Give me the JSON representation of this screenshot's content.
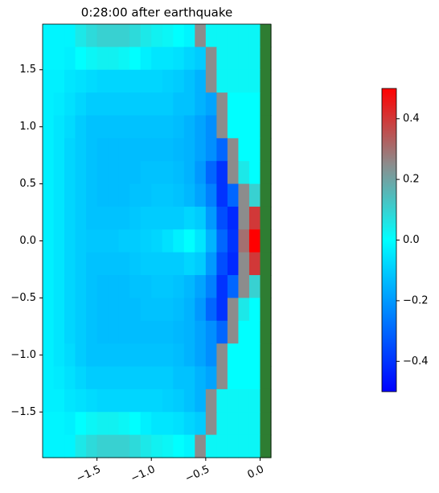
{
  "chart_data": {
    "type": "heatmap",
    "title": "0:28:00 after earthquake",
    "x": [
      -1.95,
      -1.85,
      -1.75,
      -1.65,
      -1.55,
      -1.45,
      -1.35,
      -1.25,
      -1.15,
      -1.05,
      -0.95,
      -0.85,
      -0.75,
      -0.65,
      -0.55,
      -0.45,
      -0.35,
      -0.25,
      -0.15,
      -0.05,
      0.05
    ],
    "y": [
      1.8,
      1.6,
      1.4,
      1.2,
      1.0,
      0.8,
      0.6,
      0.4,
      0.2,
      0.0,
      -0.2,
      -0.4,
      -0.6,
      -0.8,
      -1.0,
      -1.2,
      -1.4,
      -1.6,
      -1.8
    ],
    "z": [
      [
        -0.02,
        -0.02,
        -0.02,
        0.05,
        0.08,
        0.1,
        0.1,
        0.1,
        0.08,
        0.05,
        0.03,
        0.02,
        0.0,
        -0.02,
        0.25,
        0.02,
        0.02,
        0.02,
        0.02,
        0.02,
        null
      ],
      [
        -0.02,
        -0.02,
        -0.03,
        0.0,
        0.02,
        0.03,
        0.03,
        0.02,
        0.0,
        -0.03,
        -0.05,
        -0.05,
        -0.06,
        -0.08,
        -0.1,
        0.25,
        0.02,
        0.02,
        0.02,
        0.02,
        null
      ],
      [
        -0.03,
        -0.03,
        -0.05,
        -0.06,
        -0.07,
        -0.08,
        -0.08,
        -0.08,
        -0.08,
        -0.08,
        -0.08,
        -0.09,
        -0.1,
        -0.12,
        -0.15,
        0.25,
        0.02,
        0.02,
        0.02,
        0.02,
        null
      ],
      [
        -0.03,
        -0.04,
        -0.06,
        -0.08,
        -0.1,
        -0.1,
        -0.1,
        -0.1,
        -0.1,
        -0.1,
        -0.1,
        -0.1,
        -0.12,
        -0.12,
        -0.15,
        -0.18,
        0.25,
        0.0,
        0.0,
        0.0,
        null
      ],
      [
        -0.03,
        -0.05,
        -0.07,
        -0.1,
        -0.12,
        -0.12,
        -0.12,
        -0.12,
        -0.12,
        -0.12,
        -0.12,
        -0.12,
        -0.13,
        -0.15,
        -0.18,
        -0.22,
        0.25,
        0.0,
        0.0,
        0.0,
        null
      ],
      [
        -0.03,
        -0.05,
        -0.08,
        -0.1,
        -0.12,
        -0.13,
        -0.13,
        -0.13,
        -0.13,
        -0.13,
        -0.13,
        -0.13,
        -0.14,
        -0.15,
        -0.18,
        -0.22,
        -0.3,
        0.25,
        0.0,
        0.0,
        null
      ],
      [
        -0.03,
        -0.05,
        -0.08,
        -0.1,
        -0.12,
        -0.13,
        -0.13,
        -0.13,
        -0.13,
        -0.12,
        -0.12,
        -0.12,
        -0.13,
        -0.15,
        -0.2,
        -0.3,
        -0.4,
        0.25,
        0.05,
        0.0,
        null
      ],
      [
        -0.03,
        -0.05,
        -0.08,
        -0.1,
        -0.12,
        -0.13,
        -0.13,
        -0.13,
        -0.12,
        -0.12,
        -0.11,
        -0.11,
        -0.12,
        -0.14,
        -0.18,
        -0.25,
        -0.4,
        -0.3,
        0.25,
        0.1,
        null
      ],
      [
        -0.03,
        -0.05,
        -0.08,
        -0.1,
        -0.12,
        -0.12,
        -0.12,
        -0.12,
        -0.11,
        -0.1,
        -0.1,
        -0.1,
        -0.1,
        -0.08,
        -0.1,
        -0.2,
        -0.35,
        -0.42,
        0.25,
        0.4,
        null
      ],
      [
        -0.03,
        -0.05,
        -0.08,
        -0.1,
        -0.11,
        -0.11,
        -0.11,
        -0.1,
        -0.1,
        -0.09,
        -0.08,
        -0.06,
        -0.03,
        0.0,
        -0.05,
        -0.15,
        -0.3,
        -0.4,
        0.3,
        0.5,
        null
      ],
      [
        -0.03,
        -0.05,
        -0.08,
        -0.1,
        -0.12,
        -0.12,
        -0.12,
        -0.12,
        -0.11,
        -0.1,
        -0.1,
        -0.1,
        -0.1,
        -0.08,
        -0.1,
        -0.2,
        -0.35,
        -0.42,
        0.25,
        0.4,
        null
      ],
      [
        -0.03,
        -0.05,
        -0.08,
        -0.1,
        -0.12,
        -0.13,
        -0.13,
        -0.13,
        -0.12,
        -0.12,
        -0.11,
        -0.11,
        -0.12,
        -0.14,
        -0.18,
        -0.25,
        -0.4,
        -0.3,
        0.25,
        0.1,
        null
      ],
      [
        -0.03,
        -0.05,
        -0.08,
        -0.1,
        -0.12,
        -0.13,
        -0.13,
        -0.13,
        -0.13,
        -0.12,
        -0.12,
        -0.12,
        -0.13,
        -0.15,
        -0.2,
        -0.3,
        -0.4,
        0.25,
        0.05,
        0.0,
        null
      ],
      [
        -0.03,
        -0.05,
        -0.08,
        -0.1,
        -0.12,
        -0.13,
        -0.13,
        -0.13,
        -0.13,
        -0.13,
        -0.13,
        -0.13,
        -0.14,
        -0.15,
        -0.18,
        -0.22,
        -0.3,
        0.25,
        0.0,
        0.0,
        null
      ],
      [
        -0.03,
        -0.05,
        -0.07,
        -0.1,
        -0.12,
        -0.12,
        -0.12,
        -0.12,
        -0.12,
        -0.12,
        -0.12,
        -0.12,
        -0.13,
        -0.15,
        -0.18,
        -0.22,
        0.25,
        0.0,
        0.0,
        0.0,
        null
      ],
      [
        -0.03,
        -0.04,
        -0.06,
        -0.08,
        -0.1,
        -0.1,
        -0.1,
        -0.1,
        -0.1,
        -0.1,
        -0.1,
        -0.1,
        -0.12,
        -0.12,
        -0.15,
        -0.18,
        0.25,
        0.0,
        0.0,
        0.0,
        null
      ],
      [
        -0.03,
        -0.03,
        -0.05,
        -0.06,
        -0.07,
        -0.08,
        -0.08,
        -0.08,
        -0.08,
        -0.08,
        -0.08,
        -0.09,
        -0.1,
        -0.12,
        -0.15,
        0.25,
        0.02,
        0.02,
        0.02,
        0.02,
        null
      ],
      [
        -0.02,
        -0.02,
        -0.03,
        0.0,
        0.02,
        0.03,
        0.03,
        0.02,
        0.0,
        -0.03,
        -0.05,
        -0.05,
        -0.06,
        -0.08,
        -0.1,
        0.25,
        0.02,
        0.02,
        0.02,
        0.02,
        null
      ],
      [
        -0.02,
        -0.02,
        -0.02,
        0.05,
        0.08,
        0.1,
        0.1,
        0.1,
        0.08,
        0.05,
        0.03,
        0.02,
        0.0,
        -0.02,
        0.25,
        0.02,
        0.02,
        0.02,
        0.02,
        0.02,
        null
      ]
    ],
    "land_color": "#2e7d32",
    "colors": [
      "#0000ff",
      "#0080ff",
      "#00ffff",
      "#8c8c8c",
      "#ff0000"
    ],
    "clim": [
      -0.5,
      0.5
    ],
    "xlim": [
      -2.0,
      0.1
    ],
    "ylim": [
      -1.9,
      1.9
    ],
    "xticks": [
      {
        "value": -1.5,
        "label": "−1.5"
      },
      {
        "value": -1.0,
        "label": "−1.0"
      },
      {
        "value": -0.5,
        "label": "−0.5"
      },
      {
        "value": 0,
        "label": "0.0"
      }
    ],
    "yticks": [
      {
        "value": -1.5,
        "label": "−1.5"
      },
      {
        "value": -1.0,
        "label": "−1.0"
      },
      {
        "value": -0.5,
        "label": "−0.5"
      },
      {
        "value": 0,
        "label": "0.0"
      },
      {
        "value": 0.5,
        "label": "0.5"
      },
      {
        "value": 1.0,
        "label": "1.0"
      },
      {
        "value": 1.5,
        "label": "1.5"
      }
    ],
    "cticks": [
      {
        "value": -0.4,
        "label": "−0.4"
      },
      {
        "value": -0.2,
        "label": "−0.2"
      },
      {
        "value": 0,
        "label": "0.0"
      },
      {
        "value": 0.2,
        "label": "0.2"
      },
      {
        "value": 0.4,
        "label": "0.4"
      }
    ]
  }
}
